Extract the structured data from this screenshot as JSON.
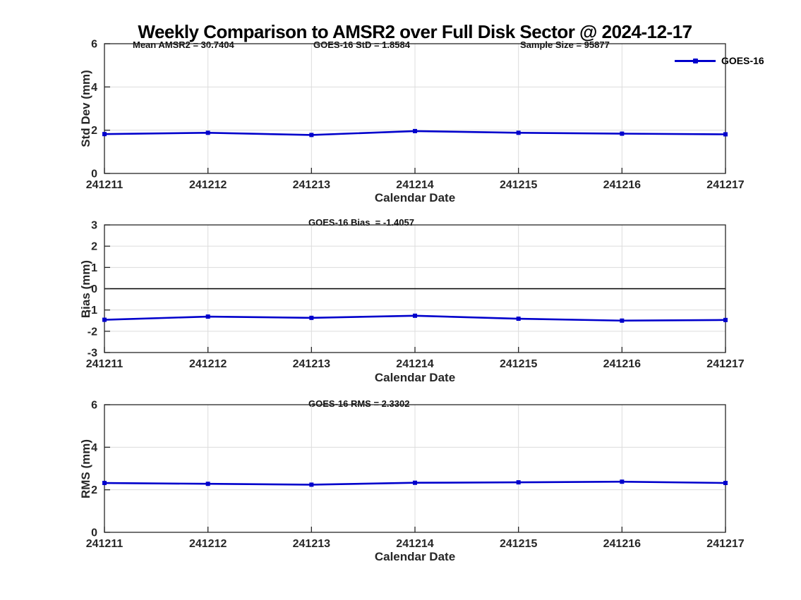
{
  "page": {
    "title": "Weekly Comparison to AMSR2 over Full Disk Sector @ 2024-12-17"
  },
  "legend": {
    "label": "GOES-16"
  },
  "colors": {
    "series": "#0000CC",
    "grid": "#DCDCDC",
    "axis": "#262626",
    "tick_text": "#262626",
    "zero_line": "#000000"
  },
  "chart_data": [
    {
      "type": "line",
      "name": "std_dev",
      "annotations": [
        "Mean AMSR2 = 30.7404",
        "GOES-16 StD = 1.8584",
        "Sample Size = 95877"
      ],
      "ylabel": "Std Dev (mm)",
      "xlabel": "Calendar Date",
      "categories": [
        "241211",
        "241212",
        "241213",
        "241214",
        "241215",
        "241216",
        "241217"
      ],
      "series": [
        {
          "name": "GOES-16",
          "values": [
            1.82,
            1.88,
            1.78,
            1.96,
            1.88,
            1.84,
            1.81
          ]
        }
      ],
      "ylim": [
        0,
        6
      ],
      "yticks": [
        0,
        2,
        4,
        6
      ],
      "grid": true,
      "zero_line": false,
      "legend_position": "top-right"
    },
    {
      "type": "line",
      "name": "bias",
      "annotations": [
        "GOES-16 Bias  = -1.4057"
      ],
      "ylabel": "Bias (mm)",
      "xlabel": "Calendar Date",
      "categories": [
        "241211",
        "241212",
        "241213",
        "241214",
        "241215",
        "241216",
        "241217"
      ],
      "series": [
        {
          "name": "GOES-16",
          "values": [
            -1.46,
            -1.31,
            -1.37,
            -1.27,
            -1.41,
            -1.5,
            -1.47
          ]
        }
      ],
      "ylim": [
        -3,
        3
      ],
      "yticks": [
        -3,
        -2,
        -1,
        0,
        1,
        2,
        3
      ],
      "grid": true,
      "zero_line": true,
      "legend_position": "none"
    },
    {
      "type": "line",
      "name": "rms",
      "annotations": [
        "GOES-16 RMS = 2.3302"
      ],
      "ylabel": "RMS (mm)",
      "xlabel": "Calendar Date",
      "categories": [
        "241211",
        "241212",
        "241213",
        "241214",
        "241215",
        "241216",
        "241217"
      ],
      "series": [
        {
          "name": "GOES-16",
          "values": [
            2.32,
            2.28,
            2.24,
            2.33,
            2.35,
            2.38,
            2.32
          ]
        }
      ],
      "ylim": [
        0,
        6
      ],
      "yticks": [
        0,
        2,
        4,
        6
      ],
      "grid": true,
      "zero_line": false,
      "legend_position": "none"
    }
  ]
}
